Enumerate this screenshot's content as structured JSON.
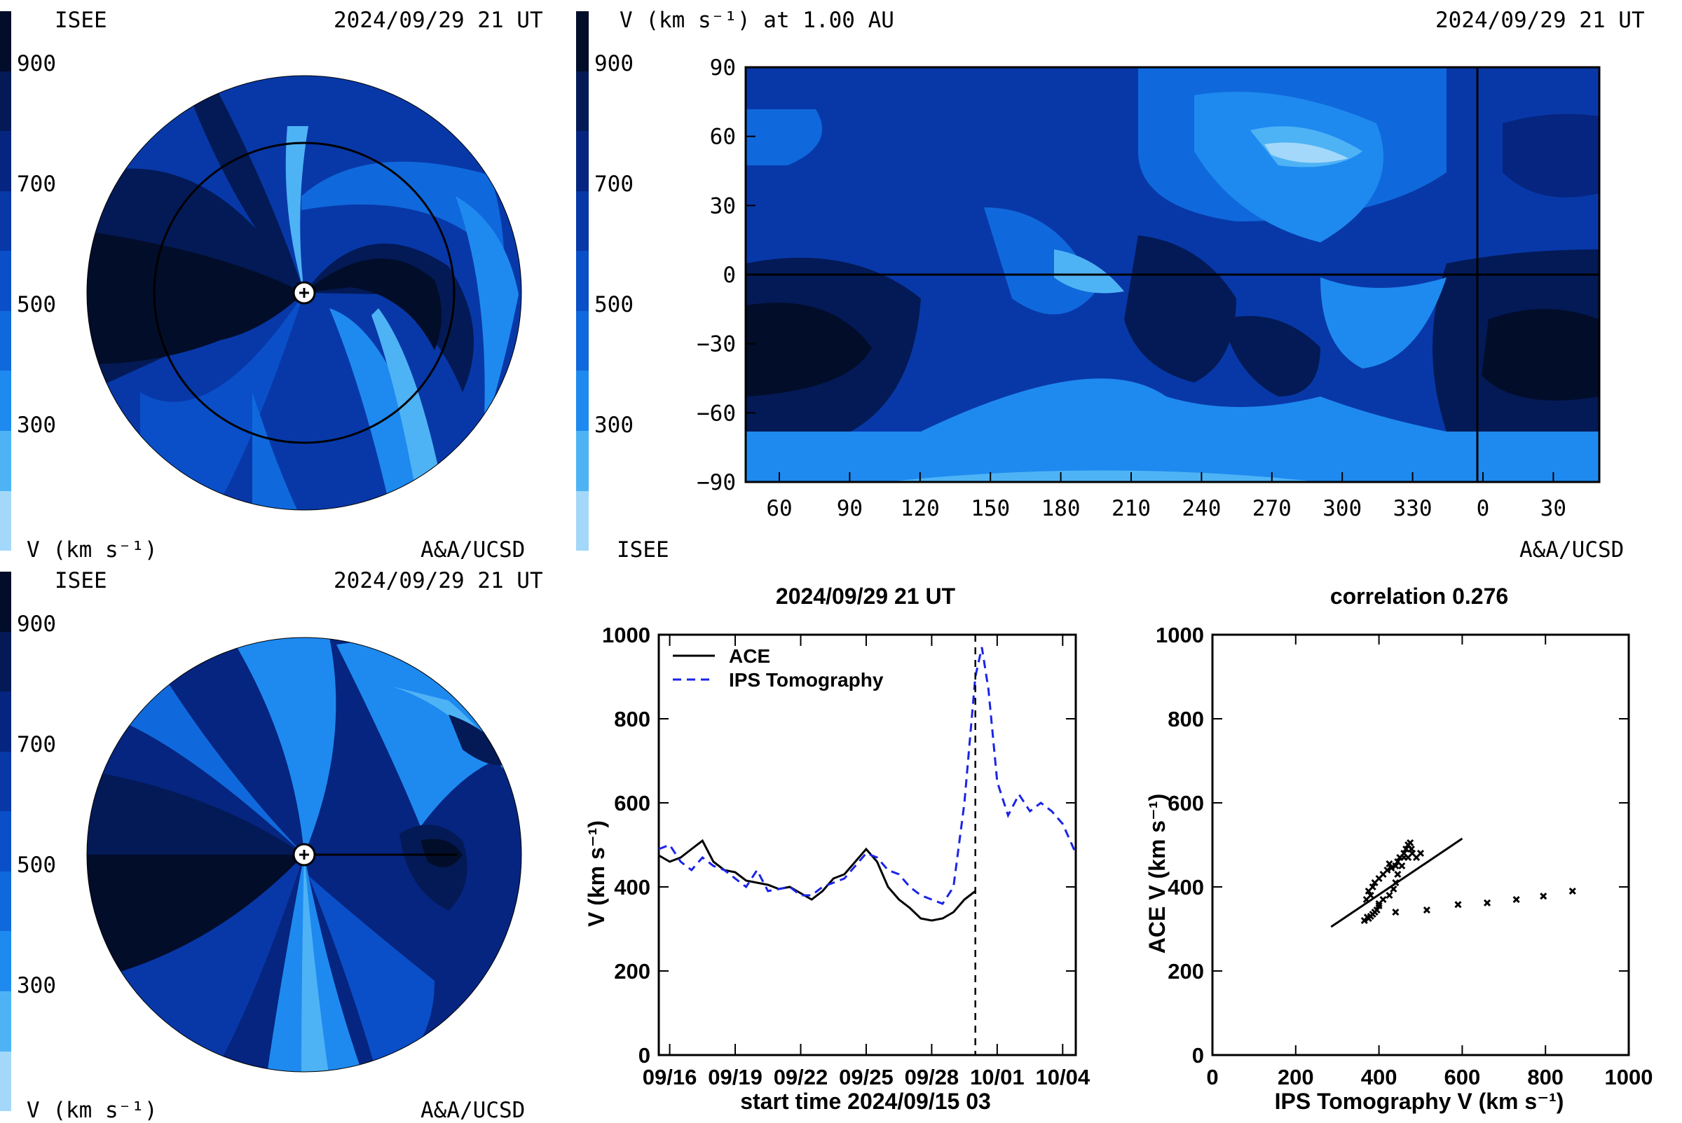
{
  "colors": {
    "scale": [
      "#a4d8fa",
      "#4eb3f5",
      "#1e8af0",
      "#1069dc",
      "#0a4fc8",
      "#0838a8",
      "#052580",
      "#031a56",
      "#020d2a"
    ],
    "line_ace": "#000000",
    "line_ips": "#1a24e8"
  },
  "panel_tl": {
    "left_label": "ISEE",
    "datetime": "2024/09/29 21 UT",
    "bottom_left": "V (km s⁻¹)",
    "bottom_right": "A&A/UCSD",
    "colorbar_ticks": [
      "900",
      "700",
      "500",
      "300"
    ]
  },
  "panel_tr": {
    "title": "V (km s⁻¹) at 1.00 AU",
    "datetime": "2024/09/29 21 UT",
    "bottom_left": "ISEE",
    "bottom_right": "A&A/UCSD",
    "colorbar_ticks": [
      "900",
      "700",
      "500",
      "300"
    ],
    "y_ticks": [
      "90",
      "60",
      "30",
      "0",
      "−30",
      "−60",
      "−90"
    ],
    "x_ticks": [
      "60",
      "90",
      "120",
      "150",
      "180",
      "210",
      "240",
      "270",
      "300",
      "330",
      "0",
      "30"
    ]
  },
  "panel_bl": {
    "left_label": "ISEE",
    "datetime": "2024/09/29 21 UT",
    "bottom_left": "V (km s⁻¹)",
    "bottom_right": "A&A/UCSD",
    "colorbar_ticks": [
      "900",
      "700",
      "500",
      "300"
    ]
  },
  "chart_data": [
    {
      "type": "line",
      "title": "2024/09/29 21 UT",
      "xlabel": "start time 2024/09/15 03",
      "ylabel": "V (km s⁻¹)",
      "ylim": [
        0,
        1000
      ],
      "xlim": [
        0.5,
        19.6
      ],
      "x_tick_labels": [
        "09/16",
        "09/19",
        "09/22",
        "09/25",
        "09/28",
        "10/01",
        "10/04"
      ],
      "x_tick_days": [
        1,
        4,
        7,
        10,
        13,
        16,
        19
      ],
      "y_ticks": [
        "0",
        "200",
        "400",
        "600",
        "800",
        "1000"
      ],
      "vline_day": 15.0,
      "series": [
        {
          "name": "ACE",
          "style": "solid",
          "x": [
            0.5,
            1.0,
            1.5,
            2.0,
            2.5,
            3.0,
            3.5,
            4.0,
            4.5,
            5.0,
            5.5,
            6.0,
            6.5,
            7.0,
            7.5,
            8.0,
            8.5,
            9.0,
            9.5,
            10.0,
            10.5,
            11.0,
            11.5,
            12.0,
            12.5,
            13.0,
            13.5,
            14.0,
            14.5,
            15.0
          ],
          "y": [
            475,
            460,
            470,
            490,
            510,
            460,
            440,
            435,
            415,
            410,
            405,
            395,
            400,
            385,
            370,
            390,
            420,
            430,
            460,
            490,
            460,
            400,
            370,
            350,
            325,
            320,
            325,
            340,
            370,
            390
          ]
        },
        {
          "name": "IPS Tomography",
          "style": "dashed",
          "x": [
            0.5,
            1.0,
            1.5,
            2.0,
            2.5,
            3.0,
            3.5,
            4.0,
            4.5,
            5.0,
            5.5,
            6.0,
            6.5,
            7.0,
            7.5,
            8.0,
            8.5,
            9.0,
            9.5,
            10.0,
            10.5,
            11.0,
            11.5,
            12.0,
            12.5,
            13.0,
            13.5,
            14.0,
            14.5,
            15.0,
            15.3,
            15.6,
            16.0,
            16.5,
            17.0,
            17.5,
            18.0,
            18.5,
            19.0,
            19.6
          ],
          "y": [
            490,
            500,
            460,
            440,
            470,
            450,
            440,
            420,
            400,
            440,
            390,
            395,
            400,
            380,
            380,
            400,
            410,
            420,
            450,
            480,
            470,
            440,
            430,
            400,
            380,
            370,
            360,
            400,
            600,
            900,
            970,
            870,
            650,
            570,
            620,
            580,
            600,
            580,
            550,
            480
          ]
        }
      ]
    },
    {
      "type": "scatter",
      "title": "correlation 0.276",
      "xlabel": "IPS Tomography V (km s⁻¹)",
      "ylabel": "ACE V (km s⁻¹)",
      "xlim": [
        0,
        1000
      ],
      "ylim": [
        0,
        1000
      ],
      "x_ticks": [
        "0",
        "200",
        "400",
        "600",
        "800",
        "1000"
      ],
      "y_ticks": [
        "0",
        "200",
        "400",
        "600",
        "800",
        "1000"
      ],
      "points": [
        [
          365,
          320
        ],
        [
          375,
          325
        ],
        [
          380,
          330
        ],
        [
          390,
          340
        ],
        [
          400,
          360
        ],
        [
          380,
          380
        ],
        [
          370,
          370
        ],
        [
          375,
          390
        ],
        [
          385,
          400
        ],
        [
          390,
          410
        ],
        [
          400,
          420
        ],
        [
          410,
          430
        ],
        [
          420,
          440
        ],
        [
          425,
          455
        ],
        [
          430,
          445
        ],
        [
          440,
          450
        ],
        [
          445,
          460
        ],
        [
          450,
          470
        ],
        [
          460,
          480
        ],
        [
          465,
          490
        ],
        [
          470,
          500
        ],
        [
          475,
          505
        ],
        [
          478,
          490
        ],
        [
          470,
          470
        ],
        [
          455,
          450
        ],
        [
          445,
          430
        ],
        [
          440,
          410
        ],
        [
          435,
          395
        ],
        [
          425,
          380
        ],
        [
          410,
          370
        ],
        [
          400,
          355
        ],
        [
          395,
          345
        ],
        [
          385,
          335
        ],
        [
          372,
          328
        ],
        [
          460,
          470
        ],
        [
          480,
          480
        ],
        [
          490,
          470
        ],
        [
          500,
          480
        ],
        [
          440,
          340
        ],
        [
          515,
          345
        ],
        [
          590,
          358
        ],
        [
          660,
          362
        ],
        [
          730,
          370
        ],
        [
          795,
          378
        ],
        [
          865,
          390
        ]
      ],
      "fit_line": [
        [
          285,
          305
        ],
        [
          600,
          515
        ]
      ]
    }
  ]
}
